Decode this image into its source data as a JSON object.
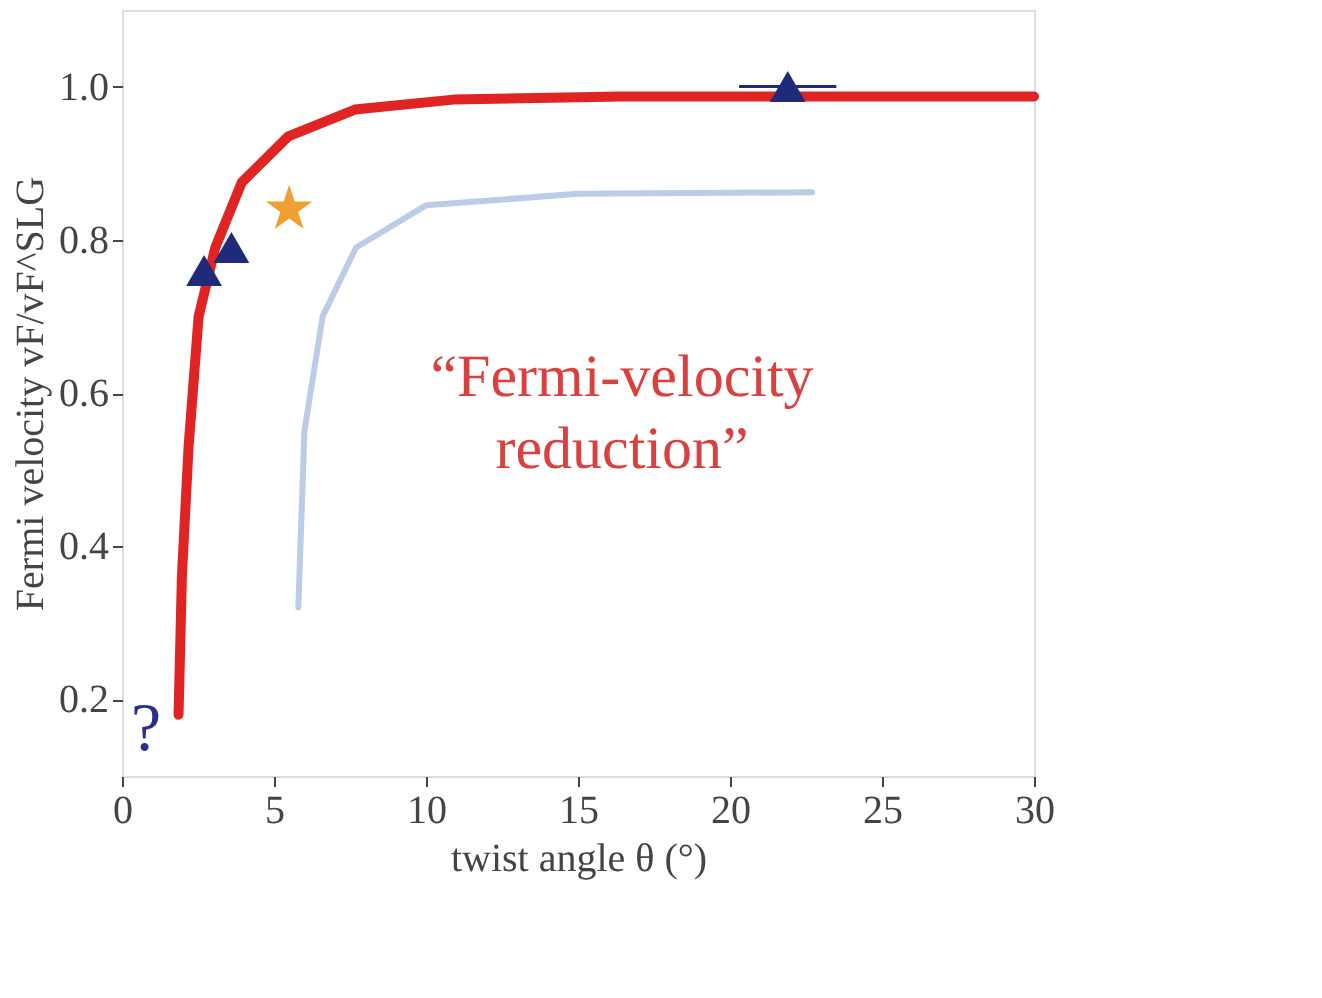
{
  "chart_data": {
    "type": "line",
    "xlabel": "twist angle θ (°)",
    "ylabel": "Fermi velocity  vF/vF^SLG",
    "xlim": [
      0,
      30
    ],
    "xticks": [
      0,
      5,
      10,
      15,
      20,
      25,
      30
    ],
    "ylim": [
      0.1,
      1.1
    ],
    "yticks": [
      0.2,
      0.4,
      0.6,
      0.8,
      {
        "value": 1.0,
        "label": "1.0"
      }
    ],
    "grid": false,
    "series": [
      {
        "color": "#e02424",
        "line_style": "solid",
        "x": [
          1.86,
          1.97,
          2.19,
          2.52,
          3.07,
          3.94,
          5.47,
          7.66,
          10.9,
          16.4,
          30
        ],
        "values": [
          0.18,
          0.36,
          0.53,
          0.7,
          0.79,
          0.875,
          0.935,
          0.97,
          0.983,
          0.987,
          0.987
        ]
      },
      {
        "color": "#bccbe6",
        "line_style": "solid",
        "x": [
          22.7,
          15,
          10,
          7.7,
          6.6,
          6.0,
          5.8
        ],
        "values": [
          0.862,
          0.86,
          0.845,
          0.79,
          0.7,
          0.55,
          0.32
        ]
      },
      {
        "type": "scatter",
        "marker": "triangle",
        "color": "#1f2a7a",
        "x": [
          2.7,
          3.6,
          21.9
        ],
        "values": [
          0.76,
          0.79,
          1.0
        ],
        "xerrors": [
          null,
          null,
          1.6
        ]
      },
      {
        "type": "scatter",
        "marker": "star",
        "color": "#f0a030",
        "x": [
          5.5
        ],
        "values": [
          0.84
        ]
      }
    ],
    "annotations": [
      "“Fermi-velocity\nreduction”",
      "?"
    ]
  }
}
